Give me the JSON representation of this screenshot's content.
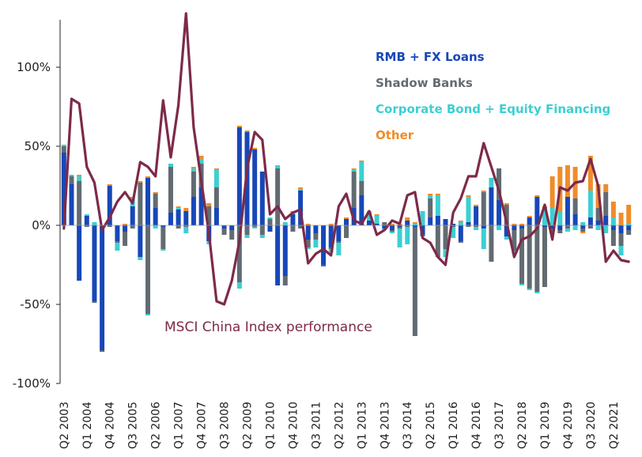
{
  "chart_data": {
    "type": "bar",
    "title": "",
    "xlabel": "",
    "ylabel": "",
    "ylim": [
      -100,
      130
    ],
    "yticks": [
      100,
      50,
      0,
      -50,
      -100
    ],
    "ytick_labels": [
      "100%",
      "50%",
      "0%",
      "-50%",
      "-100%"
    ],
    "xtick_labels": [
      "Q2 2003",
      "Q1 2004",
      "Q4 2004",
      "Q3 2005",
      "Q2 2006",
      "Q1 2007",
      "Q4 2007",
      "Q3 2008",
      "Q2 2009",
      "Q1 2010",
      "Q4 2010",
      "Q3 2011",
      "Q2 2012",
      "Q1 2013",
      "Q4 2013",
      "Q3 2014",
      "Q2 2015",
      "Q1 2016",
      "Q4 2016",
      "Q3 2017",
      "Q2 2018",
      "Q1 2019",
      "Q4 2019",
      "Q3 2020",
      "Q2 2021"
    ],
    "legend_placement": "top-right",
    "grid": false,
    "stacking": "stacked",
    "categories": [
      "Q2 2003",
      "Q3 2003",
      "Q4 2003",
      "Q1 2004",
      "Q2 2004",
      "Q3 2004",
      "Q4 2004",
      "Q1 2005",
      "Q2 2005",
      "Q3 2005",
      "Q4 2005",
      "Q1 2006",
      "Q2 2006",
      "Q3 2006",
      "Q4 2006",
      "Q1 2007",
      "Q2 2007",
      "Q3 2007",
      "Q4 2007",
      "Q1 2008",
      "Q2 2008",
      "Q3 2008",
      "Q4 2008",
      "Q1 2009",
      "Q2 2009",
      "Q3 2009",
      "Q4 2009",
      "Q1 2010",
      "Q2 2010",
      "Q3 2010",
      "Q4 2010",
      "Q1 2011",
      "Q2 2011",
      "Q3 2011",
      "Q4 2011",
      "Q1 2012",
      "Q2 2012",
      "Q3 2012",
      "Q4 2012",
      "Q1 2013",
      "Q2 2013",
      "Q3 2013",
      "Q4 2013",
      "Q1 2014",
      "Q2 2014",
      "Q3 2014",
      "Q4 2014",
      "Q1 2015",
      "Q2 2015",
      "Q3 2015",
      "Q4 2015",
      "Q1 2016",
      "Q2 2016",
      "Q3 2016",
      "Q4 2016",
      "Q1 2017",
      "Q2 2017",
      "Q3 2017",
      "Q4 2017",
      "Q1 2018",
      "Q2 2018",
      "Q3 2018",
      "Q4 2018",
      "Q1 2019",
      "Q2 2019",
      "Q3 2019",
      "Q4 2019",
      "Q1 2020",
      "Q2 2020",
      "Q3 2020",
      "Q4 2020",
      "Q1 2021",
      "Q2 2021",
      "Q3 2021",
      "Q4 2021"
    ],
    "series": [
      {
        "name": "RMB + FX Loans",
        "color": "#1747b8",
        "values": [
          46,
          26,
          -35,
          6,
          -48,
          -79,
          25,
          -10,
          -4,
          12,
          -20,
          30,
          11,
          -1,
          8,
          10,
          9,
          18,
          24,
          -10,
          11,
          -2,
          -3,
          62,
          59,
          48,
          34,
          -4,
          -38,
          -32,
          7,
          22,
          -9,
          -5,
          -25,
          -14,
          -10,
          4,
          11,
          19,
          3,
          1,
          -2,
          -3,
          -1,
          3,
          -1,
          -6,
          5,
          6,
          4,
          1,
          -10,
          2,
          12,
          -2,
          24,
          16,
          -7,
          -3,
          -2,
          5,
          18,
          -1,
          -2,
          -3,
          18,
          7,
          -2,
          5,
          3,
          6,
          -3,
          -5,
          -3
        ]
      },
      {
        "name": "Shadow Banks",
        "color": "#626b72",
        "values": [
          4,
          5,
          28,
          -1,
          -1,
          -1,
          -1,
          -1,
          -9,
          -2,
          27,
          -56,
          9,
          -14,
          29,
          -2,
          -1,
          16,
          15,
          12,
          13,
          -4,
          -6,
          -36,
          -6,
          -1,
          -6,
          4,
          36,
          -6,
          -4,
          -2,
          -5,
          -4,
          -1,
          -1,
          -1,
          -8,
          23,
          9,
          0,
          0,
          2,
          -1,
          -1,
          -1,
          -69,
          -1,
          12,
          -20,
          -15,
          -1,
          -1,
          -1,
          -1,
          21,
          -23,
          20,
          13,
          -13,
          -35,
          -40,
          -42,
          -38,
          -2,
          -2,
          -2,
          10,
          -2,
          -2,
          8,
          15,
          -10,
          -8,
          -3
        ]
      },
      {
        "name": "Corporate Bond + Equity Financing",
        "color": "#3ccfd2",
        "values": [
          1,
          1,
          3,
          1,
          2,
          0,
          0,
          -5,
          0,
          5,
          -2,
          -1,
          -2,
          -1,
          2,
          1,
          -4,
          2,
          3,
          -2,
          11,
          0,
          0,
          -4,
          -2,
          -1,
          -2,
          1,
          2,
          2,
          1,
          1,
          -1,
          -5,
          0,
          -2,
          -8,
          0,
          1,
          12,
          5,
          5,
          -1,
          -1,
          -12,
          -11,
          1,
          9,
          2,
          13,
          -5,
          -7,
          2,
          16,
          -2,
          -13,
          6,
          -3,
          -2,
          -2,
          -1,
          -1,
          -1,
          11,
          11,
          9,
          -2,
          -3,
          2,
          17,
          -3,
          -5,
          5,
          -6,
          1
        ]
      },
      {
        "name": "Other",
        "color": "#f08c2a",
        "values": [
          0,
          0,
          1,
          0,
          0,
          0,
          1,
          0,
          1,
          1,
          1,
          1,
          1,
          0,
          0,
          1,
          2,
          1,
          2,
          2,
          1,
          0,
          0,
          1,
          1,
          1,
          0,
          0,
          0,
          0,
          1,
          1,
          1,
          0,
          0,
          1,
          0,
          1,
          1,
          1,
          1,
          1,
          0,
          1,
          1,
          2,
          1,
          0,
          1,
          1,
          0,
          0,
          1,
          1,
          1,
          1,
          0,
          0,
          1,
          1,
          1,
          1,
          1,
          1,
          20,
          28,
          20,
          20,
          -1,
          22,
          15,
          5,
          10,
          8,
          12
        ]
      },
      {
        "name": "MSCI China Index performance",
        "type": "line",
        "color": "#7d2a4a",
        "values": [
          -2,
          80,
          77,
          37,
          27,
          -3,
          5,
          15,
          21,
          14,
          40,
          37,
          31,
          79,
          43,
          76,
          134,
          62,
          28,
          -5,
          -48,
          -50,
          -35,
          -10,
          36,
          59,
          54,
          7,
          12,
          4,
          8,
          10,
          -24,
          -18,
          -15,
          -19,
          12,
          20,
          3,
          1,
          9,
          -6,
          -3,
          3,
          1,
          19,
          21,
          -8,
          -11,
          -20,
          -25,
          8,
          17,
          31,
          31,
          52,
          37,
          22,
          2,
          -20,
          -9,
          -7,
          -2,
          13,
          -9,
          24,
          22,
          27,
          28,
          42,
          25,
          -23,
          -16,
          -22,
          -23
        ]
      }
    ],
    "annotations": [
      {
        "text": "MSCI China Index performance"
      }
    ]
  }
}
